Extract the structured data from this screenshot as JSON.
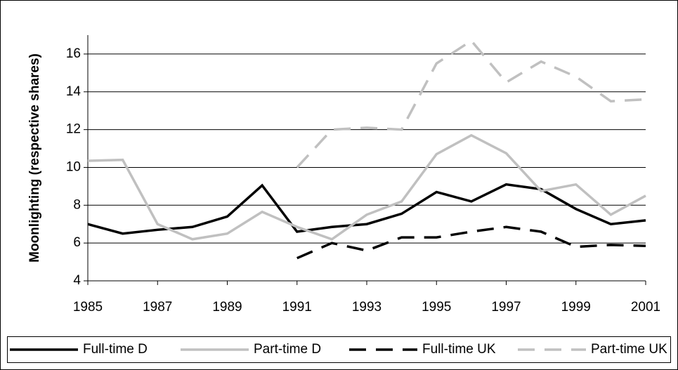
{
  "chart_data": {
    "type": "line",
    "y_label": "Moonlighting (respective shares)",
    "x": [
      1985,
      1986,
      1987,
      1988,
      1989,
      1990,
      1991,
      1992,
      1993,
      1994,
      1995,
      1996,
      1997,
      1998,
      1999,
      2000,
      2001
    ],
    "xlim": [
      1985,
      2001
    ],
    "xticks": [
      1985,
      1987,
      1989,
      1991,
      1993,
      1995,
      1997,
      1999,
      2001
    ],
    "ylim": [
      4,
      17
    ],
    "yticks": [
      4,
      6,
      8,
      10,
      12,
      14,
      16
    ],
    "grid": true,
    "legend": "bottom",
    "series": [
      {
        "name": "Full-time D",
        "color": "#000000",
        "line_style": "solid",
        "values": [
          7.0,
          6.5,
          6.7,
          6.85,
          7.4,
          9.05,
          6.6,
          6.85,
          7.0,
          7.55,
          8.7,
          8.2,
          9.1,
          8.85,
          7.8,
          7.0,
          7.2
        ]
      },
      {
        "name": "Part-time D",
        "color": "#c0c0c0",
        "line_style": "solid",
        "values": [
          10.35,
          10.4,
          7.0,
          6.2,
          6.5,
          7.65,
          6.85,
          6.2,
          7.5,
          8.2,
          10.7,
          11.7,
          10.75,
          8.75,
          9.1,
          7.5,
          8.5
        ]
      },
      {
        "name": "Full-time UK",
        "color": "#000000",
        "line_style": "dashed",
        "values": [
          null,
          null,
          null,
          null,
          null,
          null,
          5.2,
          6.0,
          5.6,
          6.3,
          6.3,
          6.6,
          6.85,
          6.6,
          5.8,
          5.9,
          5.85
        ]
      },
      {
        "name": "Part-time UK",
        "color": "#c0c0c0",
        "line_style": "dashed",
        "values": [
          null,
          null,
          null,
          null,
          null,
          null,
          10.0,
          12.0,
          12.1,
          12.0,
          15.5,
          16.7,
          14.5,
          15.6,
          14.8,
          13.5,
          13.6
        ]
      }
    ]
  }
}
